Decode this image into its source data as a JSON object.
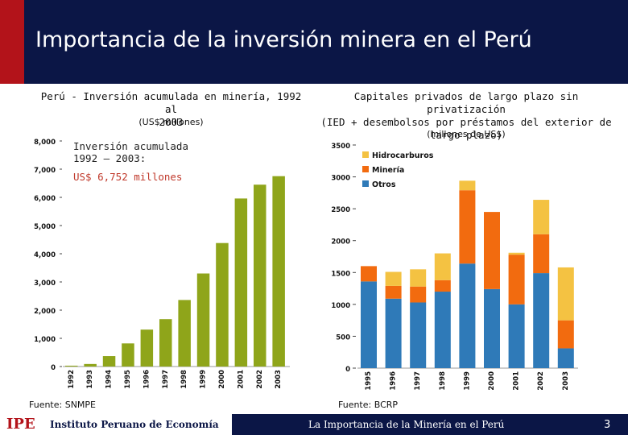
{
  "slide": {
    "title": "Importancia de la inversión minera en el Perú",
    "footer_logo": "IPE",
    "footer_institution": "Instituto Peruano de Economía",
    "footer_text": "La Importancia de la Minería en el Perú",
    "page_number": "3"
  },
  "left_chart": {
    "title_line1": "Perú - Inversión acumulada en minería, 1992 al",
    "title_line2": "2003",
    "subtitle": "(US$ millones)",
    "note_line1": "Inversión acumulada",
    "note_line2": "1992 – 2003:",
    "note_line3": "US$ 6,752 millones",
    "source": "Fuente: SNMPE"
  },
  "right_chart": {
    "title_line1": "Capitales privados de largo plazo sin privatización",
    "title_line2": "(IED + desembolsos por préstamos del exterior de",
    "title_line3": "largo plazo)",
    "subtitle": "(millones de US$)",
    "source": "Fuente: BCRP"
  },
  "colors": {
    "header_bg": "#0b1646",
    "accent_red": "#b3131a",
    "bar_green": "#8fa51a",
    "otros": "#2f7ab8",
    "mineria": "#f26b0f",
    "hidrocarburos": "#f4c242"
  },
  "chart_data": [
    {
      "type": "bar",
      "title": "Perú - Inversión acumulada en minería, 1992 al 2003",
      "ylabel": "US$ millones",
      "categories": [
        "1992",
        "1993",
        "1994",
        "1995",
        "1996",
        "1997",
        "1998",
        "1999",
        "2000",
        "2001",
        "2002",
        "2003"
      ],
      "values": [
        30,
        90,
        370,
        820,
        1310,
        1680,
        2360,
        3300,
        4380,
        5960,
        6450,
        6752
      ],
      "ylim": [
        0,
        8000
      ],
      "yticks": [
        "0",
        "1,000",
        "2,000",
        "3,000",
        "4,000",
        "5,000",
        "6,000",
        "7,000",
        "8,000"
      ]
    },
    {
      "type": "bar",
      "stacked": true,
      "title": "Capitales privados de largo plazo sin privatización (IED + desembolsos por préstamos del exterior de largo plazo)",
      "ylabel": "millones de US$",
      "categories": [
        "1995",
        "1996",
        "1997",
        "1998",
        "1999",
        "2000",
        "2001",
        "2002",
        "2003"
      ],
      "ylim": [
        0,
        3500
      ],
      "yticks": [
        "0",
        "500",
        "1000",
        "1500",
        "2000",
        "2500",
        "3000",
        "3500"
      ],
      "legend_position": "top-left",
      "series": [
        {
          "name": "Otros",
          "values": [
            1360,
            1090,
            1030,
            1200,
            1640,
            1240,
            1000,
            1490,
            310
          ]
        },
        {
          "name": "Minería",
          "values": [
            240,
            200,
            250,
            180,
            1150,
            1210,
            780,
            610,
            440
          ]
        },
        {
          "name": "Hidrocarburos",
          "values": [
            0,
            220,
            270,
            420,
            150,
            0,
            30,
            540,
            830
          ]
        }
      ]
    }
  ]
}
